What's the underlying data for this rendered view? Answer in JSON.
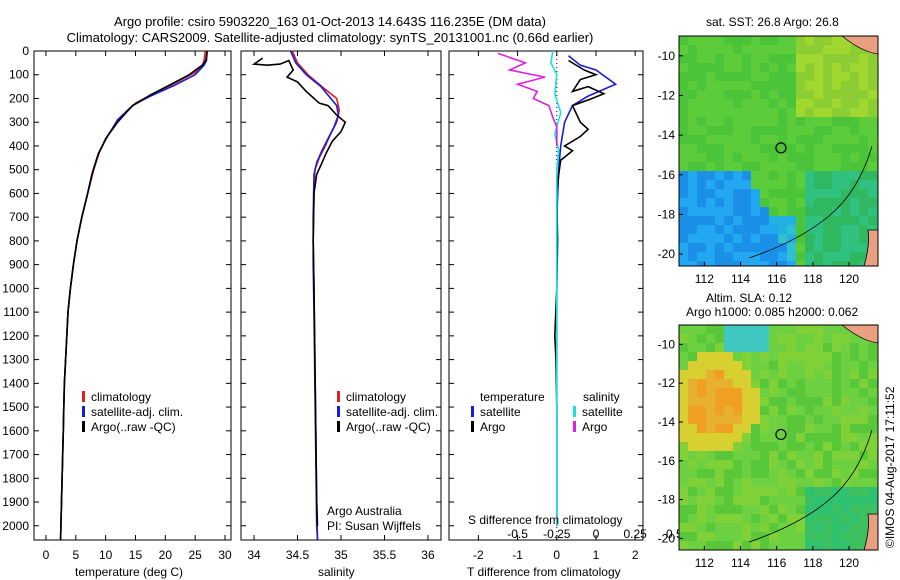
{
  "title": {
    "line1": "Argo profile: csiro 5903220_163 01-Oct-2013 14.643S 116.235E (DM data)",
    "line2": "Climatology: CARS2009. Satellite-adjusted climatology: synTS_20131001.nc (0.66d earlier)"
  },
  "colors": {
    "climatology": "#e02020",
    "satellite": "#1c1cd8",
    "argo": "#000000",
    "salinity_sat": "#18e0e0",
    "salinity_argo": "#e020e0"
  },
  "depth_axis": {
    "ticks": [
      0,
      100,
      200,
      300,
      400,
      500,
      600,
      700,
      800,
      900,
      1000,
      1100,
      1200,
      1300,
      1400,
      1500,
      1600,
      1700,
      1800,
      1900,
      2000
    ],
    "range": [
      0,
      2060
    ]
  },
  "chart_data": [
    {
      "type": "line",
      "panel": "temperature",
      "xlabel": "temperature (deg C)",
      "xlim": [
        -2,
        31
      ],
      "xticks": [
        0,
        5,
        10,
        15,
        20,
        25,
        30
      ],
      "ylim": [
        2060,
        0
      ],
      "legend": [
        "climatology",
        "satellite-adj. clim.",
        "Argo(..raw -QC)"
      ],
      "series": [
        {
          "name": "climatology",
          "color": "#e02020",
          "points": [
            [
              26.7,
              0
            ],
            [
              26.5,
              40
            ],
            [
              26.2,
              60
            ],
            [
              25,
              90
            ],
            [
              22,
              130
            ],
            [
              18,
              180
            ],
            [
              15,
              220
            ],
            [
              12.5,
              280
            ],
            [
              10.5,
              350
            ],
            [
              9,
              420
            ],
            [
              8,
              500
            ],
            [
              7,
              600
            ],
            [
              6,
              700
            ],
            [
              5.2,
              800
            ],
            [
              4.6,
              900
            ],
            [
              4.1,
              1000
            ],
            [
              3.7,
              1100
            ],
            [
              3.5,
              1200
            ],
            [
              3.3,
              1300
            ],
            [
              3.1,
              1400
            ],
            [
              3,
              1500
            ],
            [
              2.9,
              1600
            ],
            [
              2.8,
              1700
            ],
            [
              2.7,
              1800
            ],
            [
              2.6,
              1900
            ],
            [
              2.5,
              2000
            ],
            [
              2.45,
              2060
            ]
          ]
        },
        {
          "name": "satellite-adj. clim.",
          "color": "#1c1cd8",
          "points": [
            [
              27,
              0
            ],
            [
              26.9,
              40
            ],
            [
              26.5,
              60
            ],
            [
              25,
              100
            ],
            [
              21.5,
              145
            ],
            [
              17.5,
              190
            ],
            [
              14.5,
              230
            ],
            [
              12,
              290
            ],
            [
              10.3,
              360
            ],
            [
              8.8,
              430
            ],
            [
              7.8,
              510
            ],
            [
              6.9,
              610
            ],
            [
              6,
              700
            ],
            [
              5.2,
              800
            ],
            [
              4.6,
              900
            ],
            [
              4.1,
              1000
            ],
            [
              3.7,
              1100
            ],
            [
              3.5,
              1200
            ],
            [
              3.3,
              1300
            ],
            [
              3.1,
              1400
            ],
            [
              3,
              1500
            ],
            [
              2.9,
              1600
            ],
            [
              2.8,
              1700
            ],
            [
              2.7,
              1800
            ],
            [
              2.6,
              1900
            ],
            [
              2.5,
              2000
            ],
            [
              2.45,
              2060
            ]
          ]
        },
        {
          "name": "Argo(..raw -QC)",
          "color": "#000000",
          "points": [
            [
              27,
              0
            ],
            [
              26.8,
              40
            ],
            [
              26.2,
              60
            ],
            [
              24,
              100
            ],
            [
              21,
              140
            ],
            [
              17.5,
              185
            ],
            [
              14.5,
              230
            ],
            [
              12,
              300
            ],
            [
              10,
              370
            ],
            [
              8.7,
              440
            ],
            [
              7.7,
              520
            ],
            [
              6.9,
              610
            ],
            [
              6,
              700
            ],
            [
              5.2,
              800
            ],
            [
              4.6,
              900
            ],
            [
              4.1,
              1000
            ],
            [
              3.7,
              1100
            ],
            [
              3.5,
              1200
            ],
            [
              3.3,
              1300
            ],
            [
              3.1,
              1400
            ],
            [
              3,
              1500
            ],
            [
              2.9,
              1600
            ],
            [
              2.8,
              1700
            ],
            [
              2.7,
              1800
            ],
            [
              2.6,
              1900
            ],
            [
              2.5,
              2000
            ],
            [
              2.45,
              2060
            ]
          ]
        }
      ]
    },
    {
      "type": "line",
      "panel": "salinity",
      "xlabel": "salinity",
      "xlim": [
        33.85,
        36.15
      ],
      "xticks": [
        34,
        34.5,
        35,
        35.5,
        36
      ],
      "ylim": [
        2060,
        0
      ],
      "legend": [
        "climatology",
        "satellite-adj. clim.",
        "Argo(..raw -QC)"
      ],
      "series": [
        {
          "name": "climatology",
          "color": "#e02020",
          "points": [
            [
              34.44,
              0
            ],
            [
              34.5,
              50
            ],
            [
              34.62,
              100
            ],
            [
              34.78,
              150
            ],
            [
              34.95,
              200
            ],
            [
              34.98,
              250
            ],
            [
              34.95,
              300
            ],
            [
              34.88,
              350
            ],
            [
              34.82,
              400
            ],
            [
              34.75,
              450
            ],
            [
              34.7,
              500
            ],
            [
              34.69,
              600
            ],
            [
              34.68,
              800
            ],
            [
              34.69,
              1000
            ],
            [
              34.7,
              1300
            ],
            [
              34.71,
              1600
            ],
            [
              34.72,
              1900
            ],
            [
              34.73,
              2060
            ]
          ]
        },
        {
          "name": "satellite-adj. clim.",
          "color": "#1c1cd8",
          "points": [
            [
              34.42,
              0
            ],
            [
              34.48,
              50
            ],
            [
              34.6,
              100
            ],
            [
              34.77,
              150
            ],
            [
              34.95,
              230
            ],
            [
              34.97,
              270
            ],
            [
              34.92,
              320
            ],
            [
              34.85,
              370
            ],
            [
              34.78,
              420
            ],
            [
              34.72,
              470
            ],
            [
              34.69,
              520
            ],
            [
              34.68,
              700
            ],
            [
              34.68,
              900
            ],
            [
              34.69,
              1100
            ],
            [
              34.7,
              1400
            ],
            [
              34.71,
              1700
            ],
            [
              34.72,
              2000
            ],
            [
              34.73,
              2060
            ]
          ]
        },
        {
          "name": "Argo(..raw -QC)",
          "color": "#000000",
          "points": [
            [
              34.1,
              30
            ],
            [
              34.0,
              55
            ],
            [
              34.15,
              60
            ],
            [
              34.3,
              55
            ],
            [
              34.4,
              40
            ],
            [
              34.45,
              80
            ],
            [
              34.38,
              110
            ],
            [
              34.5,
              130
            ],
            [
              34.6,
              170
            ],
            [
              34.75,
              220
            ],
            [
              34.85,
              230
            ],
            [
              34.95,
              270
            ],
            [
              35.05,
              300
            ],
            [
              35.0,
              340
            ],
            [
              34.9,
              380
            ],
            [
              34.83,
              430
            ],
            [
              34.77,
              480
            ],
            [
              34.72,
              520
            ],
            [
              34.69,
              600
            ],
            [
              34.68,
              800
            ],
            [
              34.69,
              1000
            ],
            [
              34.7,
              1300
            ],
            [
              34.71,
              1600
            ],
            [
              34.72,
              1900
            ],
            [
              34.73,
              2000
            ]
          ]
        }
      ]
    },
    {
      "type": "line",
      "panel": "difference",
      "xlabel_top": "S difference from climatology",
      "xticks_top_labels": [
        "-0.5",
        "-0.25",
        "0",
        "0.25",
        "0.5"
      ],
      "xlabel": "T difference from climatology",
      "xlim": [
        -2.75,
        2.2
      ],
      "xticks": [
        -2,
        -1,
        0,
        1,
        2
      ],
      "ylim": [
        2060,
        0
      ],
      "legend": [
        "temperature",
        "satellite",
        "Argo",
        "salinity",
        "satellite",
        "Argo"
      ],
      "series": [
        {
          "name": "temperature satellite",
          "color": "#1c1cd8",
          "points": [
            [
              0.3,
              20
            ],
            [
              0.6,
              60
            ],
            [
              1,
              80
            ],
            [
              1.5,
              140
            ],
            [
              0.8,
              190
            ],
            [
              0.4,
              230
            ],
            [
              0.2,
              300
            ],
            [
              0.1,
              400
            ],
            [
              0.05,
              500
            ],
            [
              0,
              700
            ],
            [
              0,
              1000
            ],
            [
              0,
              1500
            ],
            [
              0,
              2000
            ]
          ]
        },
        {
          "name": "temperature Argo",
          "color": "#000000",
          "points": [
            [
              0.3,
              40
            ],
            [
              0.7,
              80
            ],
            [
              1.0,
              100
            ],
            [
              0.6,
              120
            ],
            [
              0.4,
              170
            ],
            [
              0.8,
              150
            ],
            [
              1.2,
              180
            ],
            [
              0.9,
              200
            ],
            [
              0.4,
              230
            ],
            [
              0.6,
              300
            ],
            [
              0.8,
              330
            ],
            [
              0.6,
              360
            ],
            [
              0.2,
              400
            ],
            [
              0.4,
              420
            ],
            [
              0.1,
              460
            ],
            [
              0.05,
              520
            ],
            [
              0,
              600
            ],
            [
              0.02,
              800
            ],
            [
              0,
              1000
            ],
            [
              -0.05,
              1200
            ],
            [
              -0.02,
              1300
            ],
            [
              0,
              1500
            ],
            [
              0,
              2000
            ]
          ]
        },
        {
          "name": "salinity satellite",
          "color": "#18e0e0",
          "points": [
            [
              -0.1,
              0
            ],
            [
              -0.15,
              50
            ],
            [
              0,
              100
            ],
            [
              -0.05,
              180
            ],
            [
              0.1,
              260
            ],
            [
              -0.05,
              350
            ],
            [
              0.05,
              420
            ],
            [
              0,
              500
            ],
            [
              0,
              700
            ],
            [
              0,
              1000
            ],
            [
              0,
              1500
            ],
            [
              0,
              2000
            ]
          ]
        },
        {
          "name": "salinity Argo",
          "color": "#e020e0",
          "points": [
            [
              -1.5,
              10
            ],
            [
              -0.8,
              50
            ],
            [
              -1.2,
              80
            ],
            [
              -0.3,
              110
            ],
            [
              -1.0,
              140
            ],
            [
              -0.5,
              170
            ],
            [
              -0.6,
              200
            ],
            [
              -0.2,
              230
            ],
            [
              -0.1,
              280
            ],
            [
              0,
              320
            ],
            [
              0,
              400
            ]
          ]
        }
      ]
    }
  ],
  "panel_labels": {
    "temp_legend": [
      "climatology",
      "satellite-adj. clim.",
      "Argo(..raw -QC)"
    ],
    "sal_legend": [
      "climatology",
      "satellite-adj. clim.",
      "Argo(..raw -QC)"
    ],
    "diff_legend": {
      "temperature": "temperature",
      "salinity": "salinity",
      "satellite": "satellite",
      "argo": "Argo"
    },
    "credit": [
      "Argo Australia",
      "PI: Susan Wijffels"
    ]
  },
  "maps": [
    {
      "title": "sat. SST: 26.8 Argo: 26.8",
      "xticks": [
        112,
        114,
        116,
        118,
        120
      ],
      "yticks": [
        -10,
        -12,
        -14,
        -16,
        -18,
        -20
      ],
      "xlim": [
        110.6,
        121.6
      ],
      "ylim": [
        -20.6,
        -9.0
      ],
      "float_lon": 116.235,
      "float_lat": -14.643
    },
    {
      "title_line1": "Altim. SLA: 0.12",
      "title_line2": "Argo h1000: 0.085 h2000: 0.062",
      "xticks": [
        112,
        114,
        116,
        118,
        120
      ],
      "yticks": [
        -10,
        -12,
        -14,
        -16,
        -18,
        -20
      ],
      "xlim": [
        110.6,
        121.6
      ],
      "ylim": [
        -20.6,
        -9.0
      ],
      "float_lon": 116.235,
      "float_lat": -14.643
    }
  ],
  "stamp": "©IMOS 04-Aug-2017 17:11:52"
}
